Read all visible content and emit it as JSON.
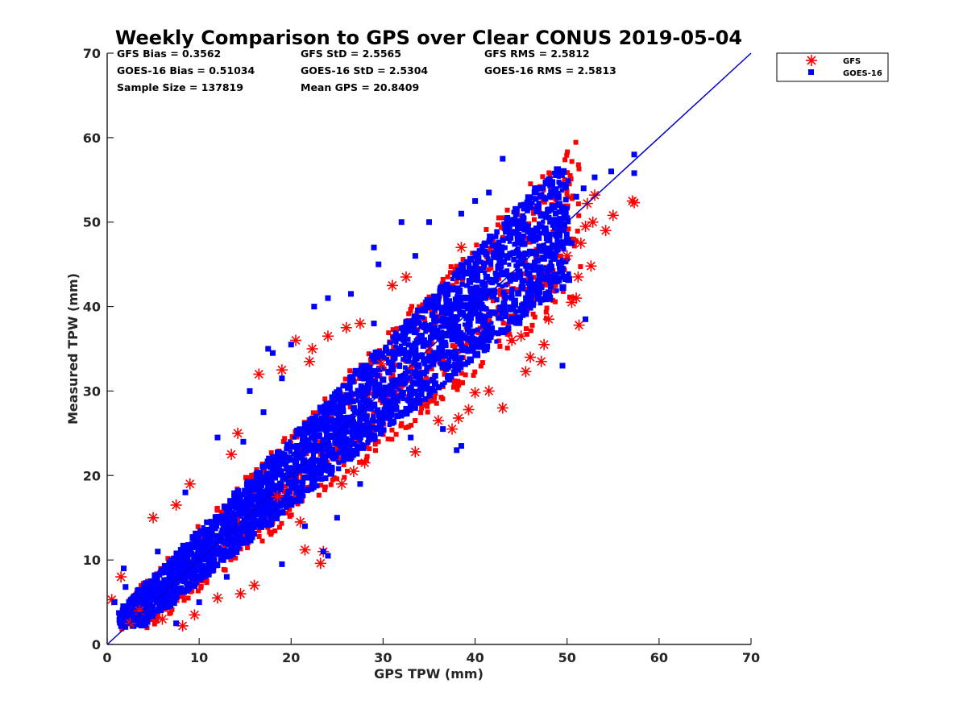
{
  "chart_data": {
    "type": "scatter",
    "title": "Weekly Comparison to GPS over Clear CONUS 2019-05-04",
    "xlabel": "GPS TPW (mm)",
    "ylabel": "Measured TPW (mm)",
    "xlim": [
      0,
      70
    ],
    "ylim": [
      0,
      70
    ],
    "x_ticks": [
      "0",
      "10",
      "20",
      "30",
      "40",
      "50",
      "60",
      "70"
    ],
    "y_ticks": [
      "0",
      "10",
      "20",
      "30",
      "40",
      "50",
      "60",
      "70"
    ],
    "legend_position": "outside-top-right",
    "legend": [
      "GFS",
      "GOES-16"
    ],
    "stats": {
      "gfs_bias": "GFS Bias = 0.3562",
      "goes_bias": "GOES-16 Bias = 0.51034",
      "sample_size": "Sample Size = 137819",
      "gfs_std": "GFS StD = 2.5565",
      "goes_std": "GOES-16 StD = 2.5304",
      "mean_gps": "Mean GPS = 20.8409",
      "gfs_rms": "GFS RMS = 2.5812",
      "goes_rms": "GOES-16 RMS = 2.5813"
    },
    "reference_line": {
      "name": "1:1 line",
      "x": [
        0,
        70
      ],
      "y": [
        0,
        70
      ],
      "color": "#0000cc"
    },
    "series": [
      {
        "name": "GFS",
        "marker": "asterisk",
        "color": "#ff0000",
        "outlier_points": [
          [
            57.3,
            52.3
          ],
          [
            57.1,
            52.5
          ],
          [
            55.0,
            50.8
          ],
          [
            54.2,
            49.0
          ],
          [
            53.0,
            53.2
          ],
          [
            52.8,
            50.0
          ],
          [
            52.2,
            52.2
          ],
          [
            52.0,
            49.5
          ],
          [
            51.5,
            47.5
          ],
          [
            52.6,
            44.8
          ],
          [
            51.2,
            43.5
          ],
          [
            51.0,
            41.0
          ],
          [
            51.3,
            37.8
          ],
          [
            50.5,
            40.5
          ],
          [
            47.5,
            35.5
          ],
          [
            47.2,
            33.5
          ],
          [
            46.0,
            34.0
          ],
          [
            45.5,
            32.3
          ],
          [
            43.0,
            28.0
          ],
          [
            41.5,
            30.0
          ],
          [
            40.0,
            29.8
          ],
          [
            39.3,
            27.8
          ],
          [
            38.2,
            26.8
          ],
          [
            37.5,
            25.5
          ],
          [
            36.0,
            26.5
          ],
          [
            33.5,
            22.8
          ],
          [
            29.8,
            33.2
          ],
          [
            27.5,
            38.0
          ],
          [
            24.0,
            36.5
          ],
          [
            22.3,
            35.0
          ],
          [
            22.0,
            33.5
          ],
          [
            19.0,
            32.5
          ],
          [
            16.5,
            32.0
          ],
          [
            13.5,
            22.5
          ],
          [
            14.2,
            25.0
          ],
          [
            23.2,
            9.6
          ],
          [
            23.5,
            11.0
          ],
          [
            21.5,
            11.2
          ],
          [
            21.0,
            14.5
          ],
          [
            14.5,
            6.0
          ],
          [
            9.5,
            3.5
          ],
          [
            8.2,
            2.2
          ],
          [
            2.5,
            2.5
          ],
          [
            0.5,
            5.3
          ],
          [
            1.5,
            8.0
          ],
          [
            9.0,
            19.0
          ],
          [
            7.5,
            16.5
          ],
          [
            5.0,
            15.0
          ],
          [
            18.5,
            17.5
          ],
          [
            25.5,
            19.0
          ],
          [
            26.8,
            20.5
          ],
          [
            31.0,
            42.5
          ],
          [
            32.5,
            43.5
          ],
          [
            48.0,
            38.5
          ],
          [
            50.0,
            46.0
          ],
          [
            44.0,
            36.0
          ],
          [
            38.5,
            47.0
          ],
          [
            28.0,
            21.5
          ],
          [
            12.0,
            5.5
          ],
          [
            16.0,
            7.0
          ],
          [
            3.5,
            4.0
          ],
          [
            6.0,
            3.0
          ],
          [
            20.5,
            36.0
          ],
          [
            26.0,
            37.5
          ],
          [
            45.0,
            36.5
          ]
        ]
      },
      {
        "name": "GOES-16",
        "marker": "square",
        "color": "#0000ff",
        "outlier_points": [
          [
            57.3,
            58.0
          ],
          [
            57.3,
            55.8
          ],
          [
            54.8,
            56.0
          ],
          [
            53.0,
            55.3
          ],
          [
            51.8,
            54.0
          ],
          [
            51.0,
            53.0
          ],
          [
            43.0,
            57.5
          ],
          [
            41.5,
            53.5
          ],
          [
            40.0,
            52.5
          ],
          [
            38.5,
            51.0
          ],
          [
            32.0,
            50.0
          ],
          [
            35.0,
            50.0
          ],
          [
            29.0,
            47.0
          ],
          [
            29.5,
            45.0
          ],
          [
            26.5,
            41.5
          ],
          [
            24.0,
            41.0
          ],
          [
            22.5,
            40.0
          ],
          [
            17.5,
            35.0
          ],
          [
            15.5,
            30.0
          ],
          [
            14.8,
            24.0
          ],
          [
            12.0,
            24.5
          ],
          [
            17.0,
            27.5
          ],
          [
            19.0,
            31.5
          ],
          [
            23.0,
            23.5
          ],
          [
            27.5,
            19.0
          ],
          [
            38.0,
            23.0
          ],
          [
            38.5,
            23.5
          ],
          [
            36.5,
            25.5
          ],
          [
            33.5,
            28.0
          ],
          [
            30.0,
            29.0
          ],
          [
            25.0,
            15.0
          ],
          [
            24.0,
            10.5
          ],
          [
            23.5,
            11.0
          ],
          [
            19.0,
            9.5
          ],
          [
            10.0,
            5.0
          ],
          [
            7.5,
            2.5
          ],
          [
            3.5,
            3.5
          ],
          [
            0.8,
            5.0
          ],
          [
            2.0,
            6.8
          ],
          [
            1.8,
            9.0
          ],
          [
            5.5,
            11.0
          ],
          [
            8.5,
            18.0
          ],
          [
            49.5,
            33.0
          ],
          [
            52.0,
            38.5
          ],
          [
            48.0,
            51.5
          ],
          [
            46.5,
            54.0
          ],
          [
            45.0,
            52.0
          ],
          [
            43.5,
            50.5
          ],
          [
            40.5,
            46.5
          ],
          [
            33.5,
            46.0
          ],
          [
            29.0,
            38.0
          ],
          [
            20.0,
            35.5
          ],
          [
            18.0,
            34.5
          ],
          [
            21.5,
            14.0
          ],
          [
            13.0,
            8.0
          ],
          [
            33.0,
            24.5
          ],
          [
            26.0,
            22.0
          ],
          [
            44.0,
            41.0
          ],
          [
            47.5,
            44.5
          ],
          [
            50.5,
            47.5
          ]
        ]
      }
    ]
  }
}
